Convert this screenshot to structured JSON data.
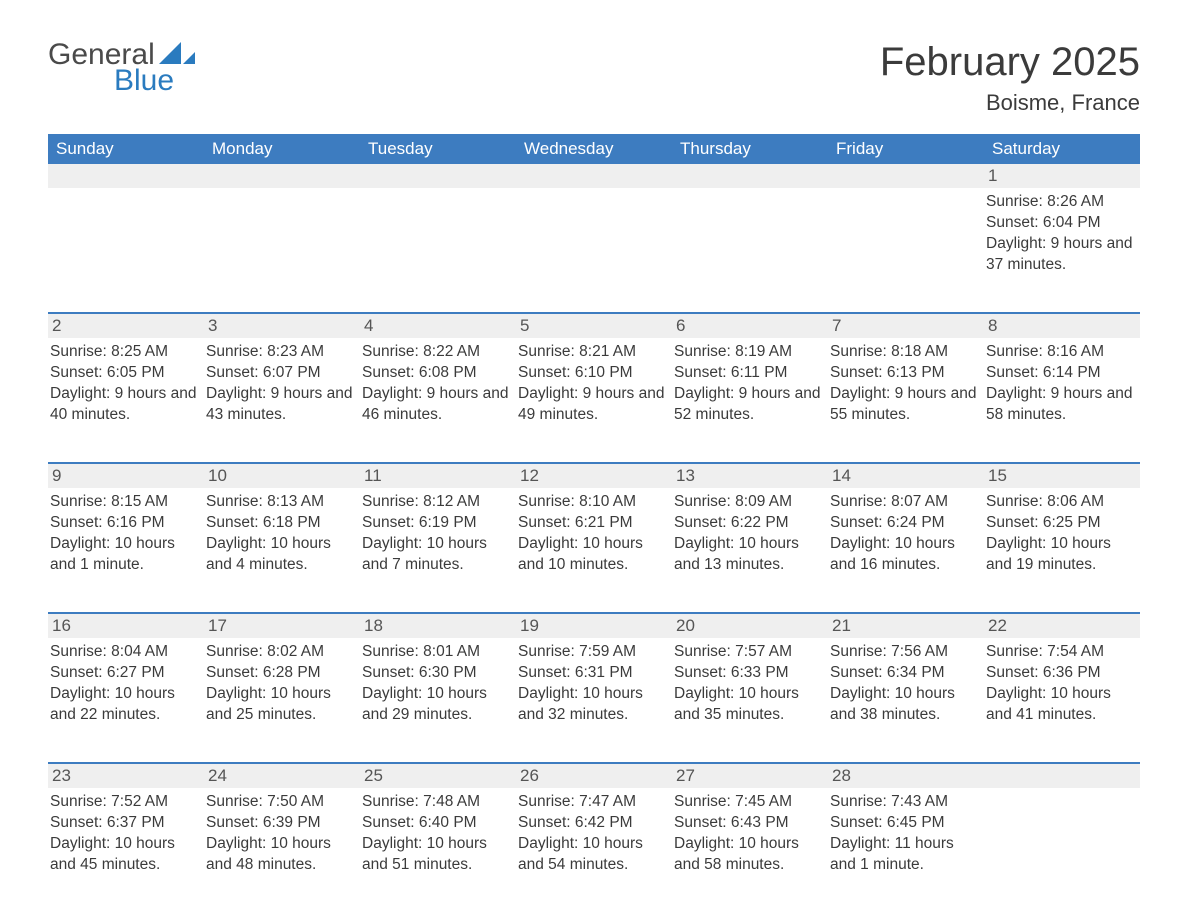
{
  "logo": {
    "general": "General",
    "blue": "Blue",
    "general_color": "#4a4a4a",
    "blue_color": "#2a7bbf",
    "shape_color": "#2a7bbf"
  },
  "header": {
    "month_title": "February 2025",
    "location": "Boisme, France",
    "title_fontsize": 40,
    "location_fontsize": 22
  },
  "colors": {
    "header_bar_bg": "#3d7cc0",
    "header_bar_text": "#ffffff",
    "daynum_band_bg": "#efefef",
    "week_divider": "#3d7cc0",
    "body_text": "#3b3b3b",
    "background": "#ffffff"
  },
  "layout": {
    "columns": 7,
    "rows": 5,
    "font_family": "Segoe UI"
  },
  "days_of_week": [
    "Sunday",
    "Monday",
    "Tuesday",
    "Wednesday",
    "Thursday",
    "Friday",
    "Saturday"
  ],
  "weeks": [
    [
      {
        "n": "",
        "sunrise": "",
        "sunset": "",
        "daylight": ""
      },
      {
        "n": "",
        "sunrise": "",
        "sunset": "",
        "daylight": ""
      },
      {
        "n": "",
        "sunrise": "",
        "sunset": "",
        "daylight": ""
      },
      {
        "n": "",
        "sunrise": "",
        "sunset": "",
        "daylight": ""
      },
      {
        "n": "",
        "sunrise": "",
        "sunset": "",
        "daylight": ""
      },
      {
        "n": "",
        "sunrise": "",
        "sunset": "",
        "daylight": ""
      },
      {
        "n": "1",
        "sunrise": "Sunrise: 8:26 AM",
        "sunset": "Sunset: 6:04 PM",
        "daylight": "Daylight: 9 hours and 37 minutes."
      }
    ],
    [
      {
        "n": "2",
        "sunrise": "Sunrise: 8:25 AM",
        "sunset": "Sunset: 6:05 PM",
        "daylight": "Daylight: 9 hours and 40 minutes."
      },
      {
        "n": "3",
        "sunrise": "Sunrise: 8:23 AM",
        "sunset": "Sunset: 6:07 PM",
        "daylight": "Daylight: 9 hours and 43 minutes."
      },
      {
        "n": "4",
        "sunrise": "Sunrise: 8:22 AM",
        "sunset": "Sunset: 6:08 PM",
        "daylight": "Daylight: 9 hours and 46 minutes."
      },
      {
        "n": "5",
        "sunrise": "Sunrise: 8:21 AM",
        "sunset": "Sunset: 6:10 PM",
        "daylight": "Daylight: 9 hours and 49 minutes."
      },
      {
        "n": "6",
        "sunrise": "Sunrise: 8:19 AM",
        "sunset": "Sunset: 6:11 PM",
        "daylight": "Daylight: 9 hours and 52 minutes."
      },
      {
        "n": "7",
        "sunrise": "Sunrise: 8:18 AM",
        "sunset": "Sunset: 6:13 PM",
        "daylight": "Daylight: 9 hours and 55 minutes."
      },
      {
        "n": "8",
        "sunrise": "Sunrise: 8:16 AM",
        "sunset": "Sunset: 6:14 PM",
        "daylight": "Daylight: 9 hours and 58 minutes."
      }
    ],
    [
      {
        "n": "9",
        "sunrise": "Sunrise: 8:15 AM",
        "sunset": "Sunset: 6:16 PM",
        "daylight": "Daylight: 10 hours and 1 minute."
      },
      {
        "n": "10",
        "sunrise": "Sunrise: 8:13 AM",
        "sunset": "Sunset: 6:18 PM",
        "daylight": "Daylight: 10 hours and 4 minutes."
      },
      {
        "n": "11",
        "sunrise": "Sunrise: 8:12 AM",
        "sunset": "Sunset: 6:19 PM",
        "daylight": "Daylight: 10 hours and 7 minutes."
      },
      {
        "n": "12",
        "sunrise": "Sunrise: 8:10 AM",
        "sunset": "Sunset: 6:21 PM",
        "daylight": "Daylight: 10 hours and 10 minutes."
      },
      {
        "n": "13",
        "sunrise": "Sunrise: 8:09 AM",
        "sunset": "Sunset: 6:22 PM",
        "daylight": "Daylight: 10 hours and 13 minutes."
      },
      {
        "n": "14",
        "sunrise": "Sunrise: 8:07 AM",
        "sunset": "Sunset: 6:24 PM",
        "daylight": "Daylight: 10 hours and 16 minutes."
      },
      {
        "n": "15",
        "sunrise": "Sunrise: 8:06 AM",
        "sunset": "Sunset: 6:25 PM",
        "daylight": "Daylight: 10 hours and 19 minutes."
      }
    ],
    [
      {
        "n": "16",
        "sunrise": "Sunrise: 8:04 AM",
        "sunset": "Sunset: 6:27 PM",
        "daylight": "Daylight: 10 hours and 22 minutes."
      },
      {
        "n": "17",
        "sunrise": "Sunrise: 8:02 AM",
        "sunset": "Sunset: 6:28 PM",
        "daylight": "Daylight: 10 hours and 25 minutes."
      },
      {
        "n": "18",
        "sunrise": "Sunrise: 8:01 AM",
        "sunset": "Sunset: 6:30 PM",
        "daylight": "Daylight: 10 hours and 29 minutes."
      },
      {
        "n": "19",
        "sunrise": "Sunrise: 7:59 AM",
        "sunset": "Sunset: 6:31 PM",
        "daylight": "Daylight: 10 hours and 32 minutes."
      },
      {
        "n": "20",
        "sunrise": "Sunrise: 7:57 AM",
        "sunset": "Sunset: 6:33 PM",
        "daylight": "Daylight: 10 hours and 35 minutes."
      },
      {
        "n": "21",
        "sunrise": "Sunrise: 7:56 AM",
        "sunset": "Sunset: 6:34 PM",
        "daylight": "Daylight: 10 hours and 38 minutes."
      },
      {
        "n": "22",
        "sunrise": "Sunrise: 7:54 AM",
        "sunset": "Sunset: 6:36 PM",
        "daylight": "Daylight: 10 hours and 41 minutes."
      }
    ],
    [
      {
        "n": "23",
        "sunrise": "Sunrise: 7:52 AM",
        "sunset": "Sunset: 6:37 PM",
        "daylight": "Daylight: 10 hours and 45 minutes."
      },
      {
        "n": "24",
        "sunrise": "Sunrise: 7:50 AM",
        "sunset": "Sunset: 6:39 PM",
        "daylight": "Daylight: 10 hours and 48 minutes."
      },
      {
        "n": "25",
        "sunrise": "Sunrise: 7:48 AM",
        "sunset": "Sunset: 6:40 PM",
        "daylight": "Daylight: 10 hours and 51 minutes."
      },
      {
        "n": "26",
        "sunrise": "Sunrise: 7:47 AM",
        "sunset": "Sunset: 6:42 PM",
        "daylight": "Daylight: 10 hours and 54 minutes."
      },
      {
        "n": "27",
        "sunrise": "Sunrise: 7:45 AM",
        "sunset": "Sunset: 6:43 PM",
        "daylight": "Daylight: 10 hours and 58 minutes."
      },
      {
        "n": "28",
        "sunrise": "Sunrise: 7:43 AM",
        "sunset": "Sunset: 6:45 PM",
        "daylight": "Daylight: 11 hours and 1 minute."
      },
      {
        "n": "",
        "sunrise": "",
        "sunset": "",
        "daylight": ""
      }
    ]
  ]
}
